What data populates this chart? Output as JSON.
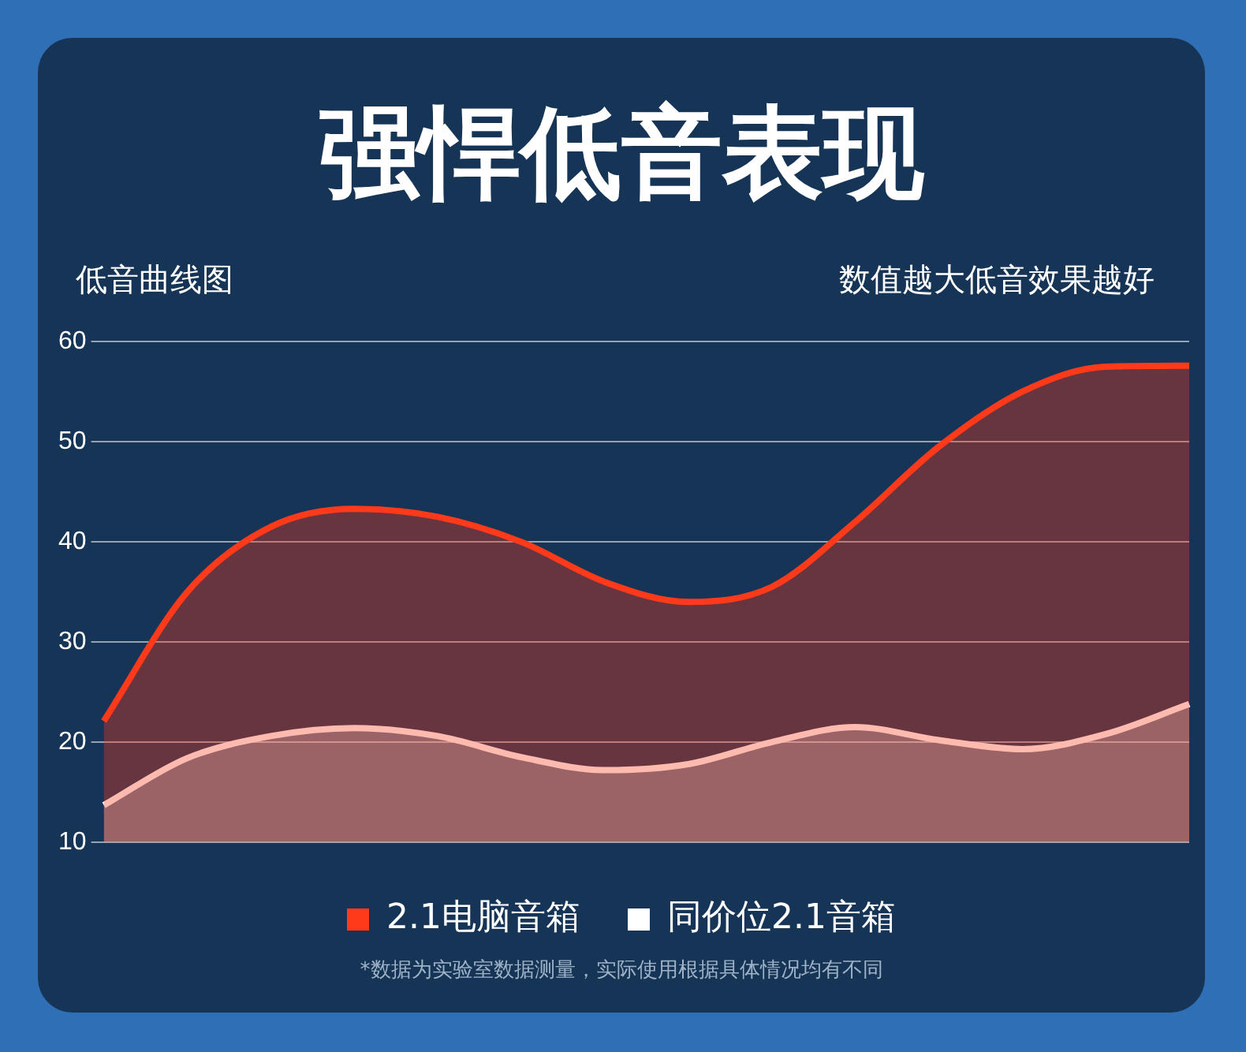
{
  "chart_data": {
    "type": "area",
    "title": "强悍低音表现",
    "ylabel": "低音曲线图",
    "annotations": [
      "数值越大低音效果越好",
      "*数据为实验室数据测量，实际使用根据具体情况均有不同"
    ],
    "categories": [
      null,
      null,
      null,
      null,
      null,
      null,
      null,
      null,
      null,
      null,
      null,
      null,
      null,
      null
    ],
    "series": [
      {
        "name": "2.1电脑音箱",
        "color": "#ff3a1a",
        "values": [
          22.1,
          35,
          41.5,
          43.3,
          42.5,
          40,
          36,
          34,
          35.5,
          42,
          49.5,
          55,
          57.5,
          57.6
        ]
      },
      {
        "name": "同价位2.1音箱",
        "color": "#ffffff",
        "values": [
          13.7,
          18.4,
          20.6,
          21.4,
          20.6,
          18.5,
          17.2,
          17.8,
          20,
          21.5,
          20.2,
          19.3,
          20.8,
          23.8
        ]
      }
    ],
    "ylim": [
      10,
      60
    ],
    "yticks": [
      10,
      20,
      30,
      40,
      50,
      60
    ],
    "grid": "y",
    "legend": "bottom",
    "marker": "none"
  }
}
